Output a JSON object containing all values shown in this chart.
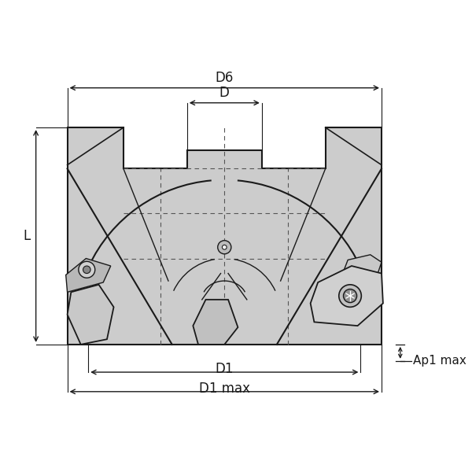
{
  "bg_color": "#ffffff",
  "line_color": "#1a1a1a",
  "fill_color": "#cccccc",
  "fill_dark": "#aaaaaa",
  "fill_light": "#e0e0e0",
  "dashed_color": "#555555",
  "labels": {
    "D6": "D6",
    "D": "D",
    "L": "L",
    "D1": "D1",
    "D1max": "D1 max",
    "Ap1max": "Ap1 max"
  },
  "figsize": [
    6.0,
    6.0
  ],
  "dpi": 100
}
